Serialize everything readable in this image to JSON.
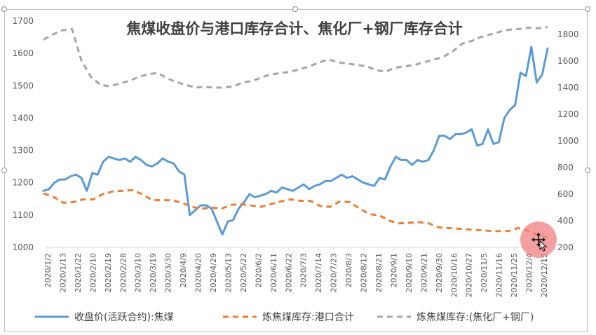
{
  "chart_data": {
    "type": "line",
    "title": "焦煤收盘价与港口库存合计、焦化厂+钢厂库存合计",
    "x_tick_labels": [
      "2020/1/2",
      "2020/1/13",
      "2020/1/22",
      "2020/2/10",
      "2020/2/19",
      "2020/2/28",
      "2020/3/10",
      "2020/3/19",
      "2020/3/30",
      "2020/4/9",
      "2020/4/20",
      "2020/4/29",
      "2020/5/13",
      "2020/5/22",
      "2020/6/2",
      "2020/6/11",
      "2020/6/22",
      "2020/7/3",
      "2020/7/14",
      "2020/7/23",
      "2020/8/3",
      "2020/8/12",
      "2020/8/21",
      "2020/9/1",
      "2020/9/10",
      "2020/9/21",
      "2020/9/30",
      "2020/10/16",
      "2020/10/27",
      "2020/11/5",
      "2020/11/16",
      "2020/11/25",
      "2020/12/4",
      "2020/12/15"
    ],
    "y_left": {
      "ticks": [
        1000,
        1100,
        1200,
        1300,
        1400,
        1500,
        1600,
        1700
      ],
      "range": [
        1000,
        1700
      ]
    },
    "y_right": {
      "ticks": [
        200,
        400,
        600,
        800,
        1000,
        1200,
        1400,
        1600,
        1800
      ],
      "range": [
        200,
        1900
      ]
    },
    "grid": false,
    "legend": "bottom",
    "series": [
      {
        "name": "收盘价(活跃合约):焦煤",
        "axis": "left",
        "color": "#5b9bd5",
        "style": "solid",
        "values": [
          1175,
          1180,
          1200,
          1210,
          1210,
          1220,
          1225,
          1215,
          1175,
          1230,
          1225,
          1265,
          1280,
          1275,
          1270,
          1275,
          1265,
          1280,
          1270,
          1255,
          1250,
          1260,
          1275,
          1265,
          1260,
          1235,
          1225,
          1100,
          1115,
          1130,
          1130,
          1120,
          1080,
          1040,
          1080,
          1085,
          1120,
          1140,
          1165,
          1155,
          1160,
          1165,
          1175,
          1170,
          1185,
          1180,
          1175,
          1185,
          1195,
          1180,
          1190,
          1195,
          1205,
          1205,
          1215,
          1225,
          1215,
          1220,
          1210,
          1200,
          1195,
          1190,
          1215,
          1210,
          1250,
          1280,
          1270,
          1270,
          1255,
          1270,
          1265,
          1270,
          1300,
          1345,
          1345,
          1335,
          1350,
          1350,
          1355,
          1365,
          1315,
          1320,
          1365,
          1320,
          1325,
          1400,
          1425,
          1440,
          1540,
          1530,
          1620,
          1510,
          1535,
          1615
        ]
      },
      {
        "name": "炼焦煤库存:港口合计",
        "axis": "right",
        "color": "#ed7d31",
        "style": "dashed",
        "values": [
          605,
          580,
          535,
          540,
          560,
          560,
          600,
          620,
          625,
          630,
          600,
          555,
          555,
          555,
          535,
          505,
          490,
          500,
          490,
          520,
          525,
          515,
          505,
          525,
          545,
          560,
          550,
          550,
          510,
          505,
          545,
          540,
          490,
          450,
          440,
          400,
          380,
          385,
          390,
          380,
          350,
          345,
          340,
          335,
          330,
          325,
          322,
          322,
          345,
          325,
          295,
          275
        ]
      },
      {
        "name": "炼焦煤库存:(焦化厂+钢厂)",
        "axis": "right",
        "color": "#a5a5a5",
        "style": "dashed",
        "values": [
          1760,
          1800,
          1830,
          1840,
          1600,
          1480,
          1420,
          1410,
          1430,
          1450,
          1480,
          1500,
          1510,
          1470,
          1440,
          1420,
          1400,
          1405,
          1400,
          1400,
          1410,
          1440,
          1450,
          1480,
          1500,
          1510,
          1520,
          1540,
          1560,
          1590,
          1610,
          1590,
          1580,
          1570,
          1560,
          1530,
          1520,
          1550,
          1560,
          1570,
          1590,
          1610,
          1630,
          1670,
          1730,
          1750,
          1780,
          1800,
          1820,
          1835,
          1840,
          1850,
          1845,
          1855
        ]
      }
    ]
  },
  "legend_items": [
    {
      "label": "收盘价(活跃合约):焦煤",
      "color": "#5b9bd5",
      "style": "solid"
    },
    {
      "label": "炼焦煤库存:港口合计",
      "color": "#ed7d31",
      "style": "dashed"
    },
    {
      "label": "炼焦煤库存:(焦化厂+钢厂)",
      "color": "#a5a5a5",
      "style": "dashed"
    }
  ],
  "cursor": {
    "icon": "move-cursor-icon",
    "highlight_color": "#f08080"
  }
}
